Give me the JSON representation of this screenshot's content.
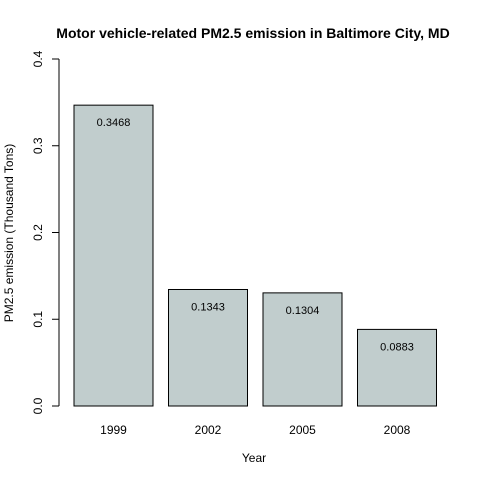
{
  "chart_data": {
    "type": "bar",
    "title": "Motor vehicle-related PM2.5 emission in Baltimore City, MD",
    "xlabel": "Year",
    "ylabel": "PM2.5 emission (Thousand Tons)",
    "categories": [
      "1999",
      "2002",
      "2005",
      "2008"
    ],
    "values": [
      0.3468,
      0.1343,
      0.1304,
      0.0883
    ],
    "data_labels": [
      "0.3468",
      "0.1343",
      "0.1304",
      "0.0883"
    ],
    "ylim": [
      0,
      0.4
    ],
    "yticks": [
      0,
      0.1,
      0.2,
      0.3,
      0.4
    ],
    "ytick_labels": [
      "0.0",
      "0.1",
      "0.2",
      "0.3",
      "0.4"
    ],
    "bar_color": "#C1CDCD",
    "bar_border_color": "#000000",
    "grid": false,
    "legend": "none"
  }
}
